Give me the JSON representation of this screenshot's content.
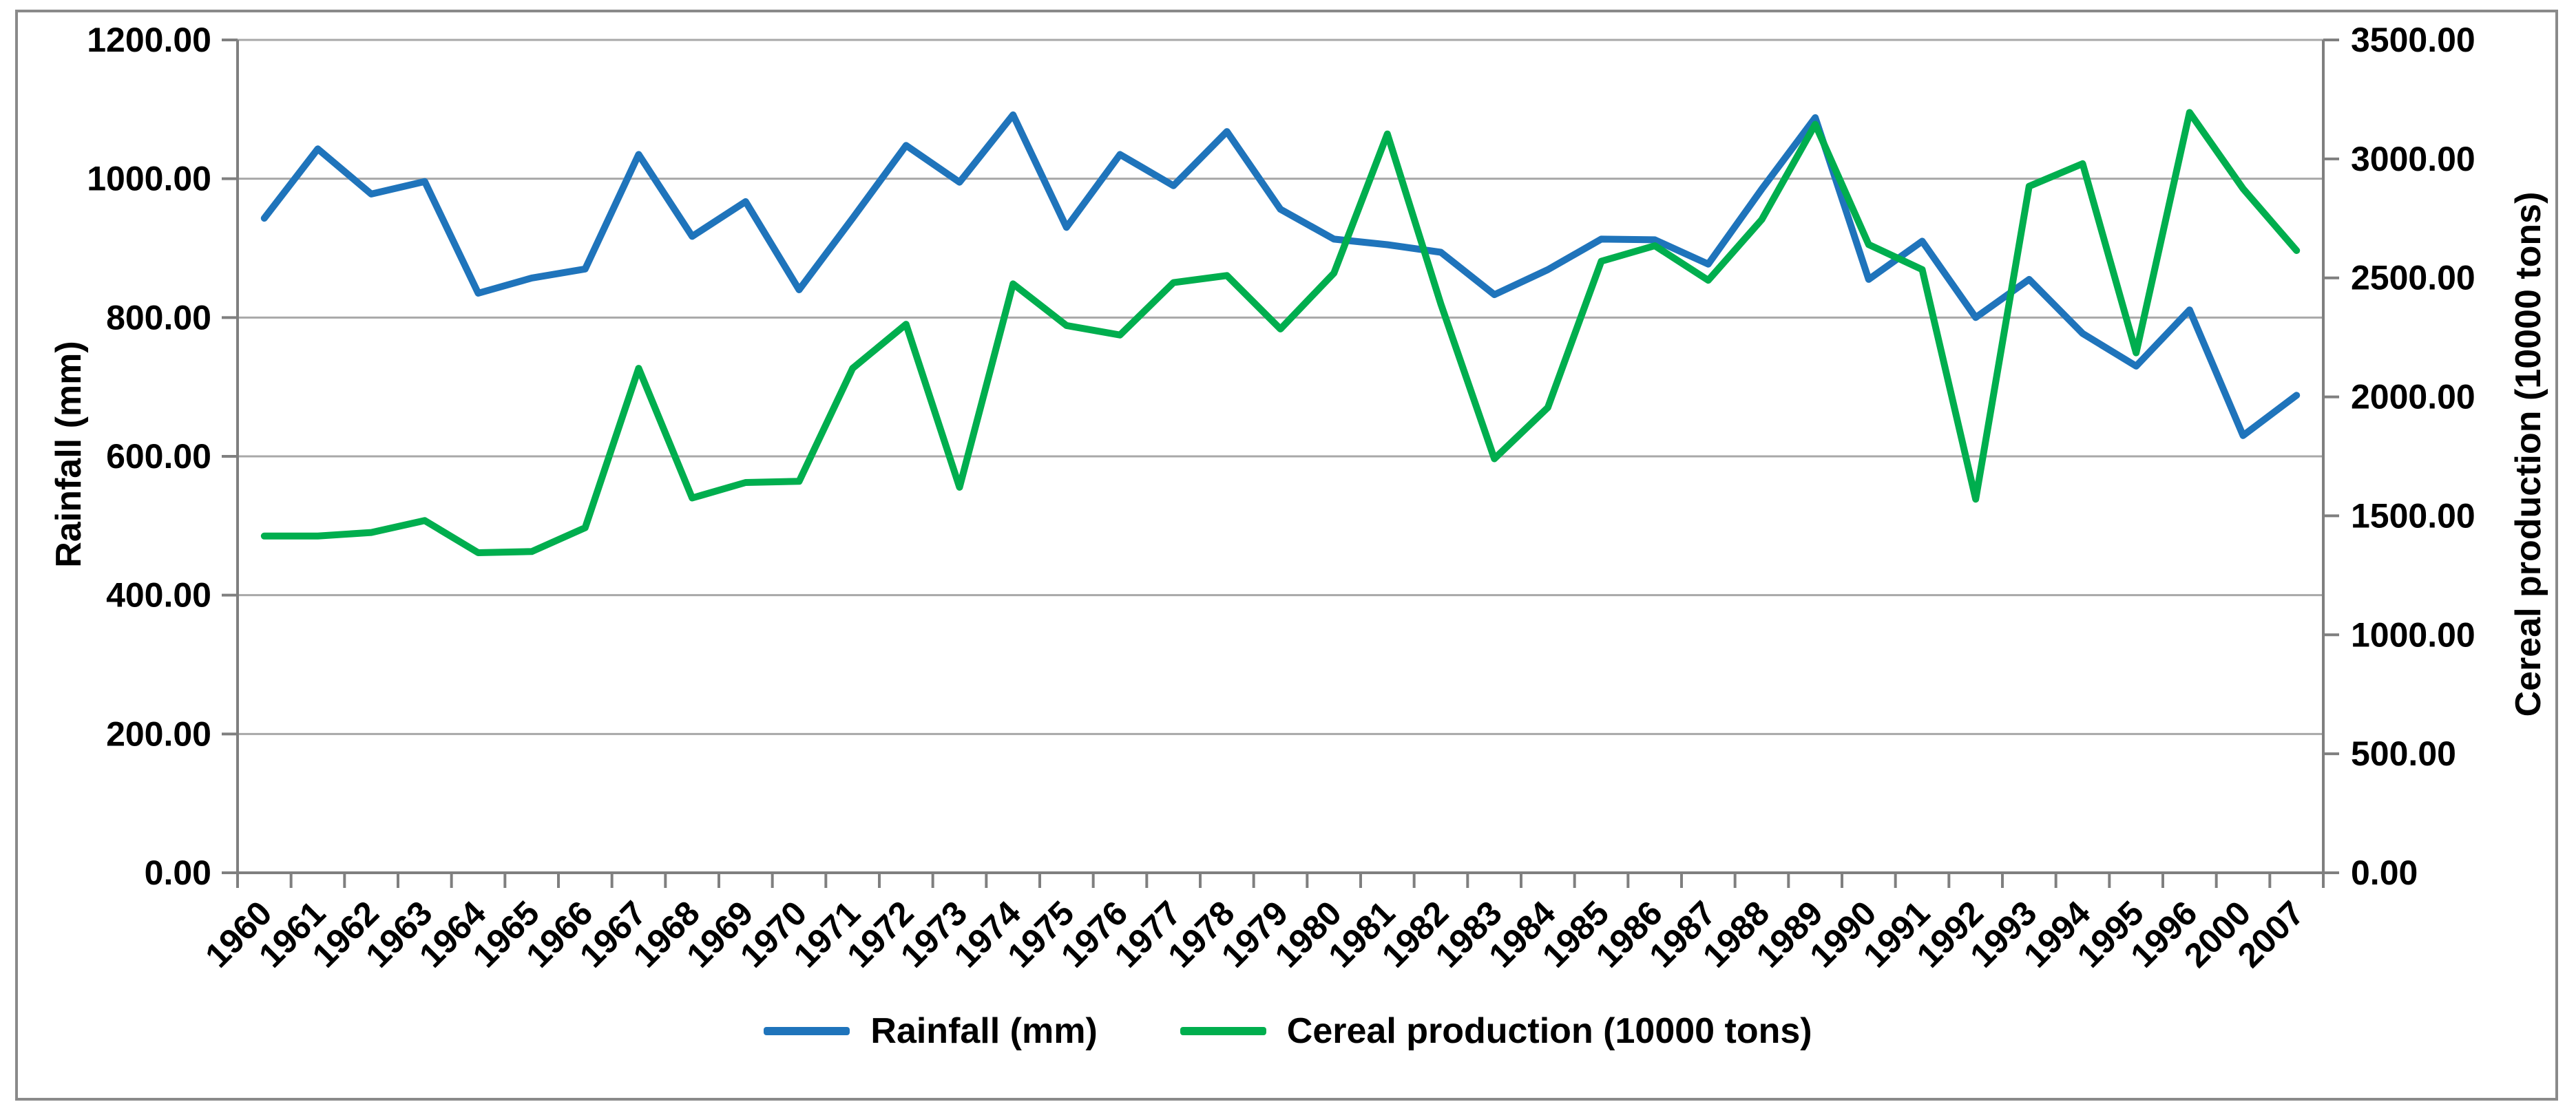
{
  "chart_data": {
    "type": "line",
    "grid": "horizontal",
    "legend_position": "bottom",
    "categories": [
      "1960",
      "1961",
      "1962",
      "1963",
      "1964",
      "1965",
      "1966",
      "1967",
      "1968",
      "1969",
      "1970",
      "1971",
      "1972",
      "1973",
      "1974",
      "1975",
      "1976",
      "1977",
      "1978",
      "1979",
      "1980",
      "1981",
      "1982",
      "1983",
      "1984",
      "1985",
      "1986",
      "1987",
      "1988",
      "1989",
      "1990",
      "1991",
      "1992",
      "1993",
      "1994",
      "1995",
      "1996",
      "2000",
      "2007"
    ],
    "series": [
      {
        "name": "Rainfall (mm)",
        "axis": "left",
        "color": "#1f74bb",
        "values": [
          943,
          1043,
          978,
          996,
          835,
          857,
          870,
          1035,
          917,
          967,
          840,
          943,
          1048,
          995,
          1092,
          930,
          1035,
          990,
          1068,
          956,
          913,
          905,
          894,
          833,
          869,
          913,
          912,
          877,
          985,
          1088,
          855,
          910,
          800,
          855,
          777,
          730,
          811,
          630,
          688
        ]
      },
      {
        "name": "Cereal production (10000 tons)",
        "axis": "right",
        "color": "#00ae4e",
        "values": [
          1415,
          1415,
          1430,
          1480,
          1345,
          1350,
          1450,
          2120,
          1575,
          1640,
          1645,
          2120,
          2305,
          1620,
          2475,
          2300,
          2260,
          2480,
          2510,
          2285,
          2520,
          3105,
          2390,
          1740,
          1955,
          2570,
          2635,
          2490,
          2745,
          3145,
          2640,
          2535,
          1570,
          2885,
          2980,
          2185,
          3195,
          2875,
          2615
        ]
      }
    ],
    "left_axis": {
      "label": "Rainfall (mm)",
      "min": 0,
      "max": 1200,
      "step": 200,
      "ticks": [
        "0.00",
        "200.00",
        "400.00",
        "600.00",
        "800.00",
        "1000.00",
        "1200.00"
      ]
    },
    "right_axis": {
      "label": "Cereal production (10000 tons)",
      "min": 0,
      "max": 3500,
      "step": 500,
      "ticks": [
        "0.00",
        "500.00",
        "1000.00",
        "1500.00",
        "2000.00",
        "2500.00",
        "3000.00",
        "3500.00"
      ]
    },
    "colors": {
      "gridline": "#a8a8a8",
      "axis_line": "#7f7f7f",
      "frame_border": "#8a8a8a",
      "text": "#000000"
    }
  }
}
